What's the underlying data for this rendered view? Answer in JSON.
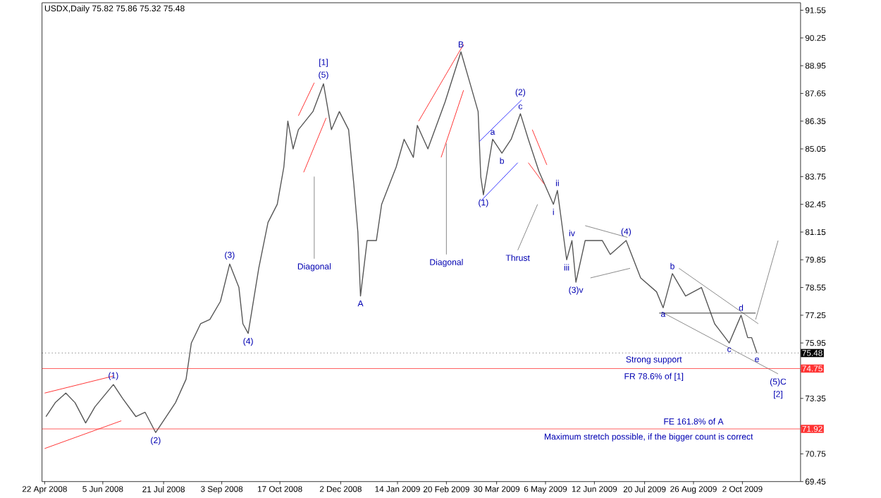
{
  "chart_data": {
    "type": "line",
    "title": "USDX,Daily 75.82 75.86 75.32 75.48",
    "x": [
      "2008-04-23",
      "2008-04-30",
      "2008-05-08",
      "2008-05-15",
      "2008-05-23",
      "2008-05-30",
      "2008-06-13",
      "2008-06-20",
      "2008-06-30",
      "2008-07-07",
      "2008-07-15",
      "2008-07-23",
      "2008-07-30",
      "2008-08-07",
      "2008-08-11",
      "2008-08-18",
      "2008-08-25",
      "2008-09-02",
      "2008-09-09",
      "2008-09-16",
      "2008-09-19",
      "2008-09-23",
      "2008-10-01",
      "2008-10-08",
      "2008-10-15",
      "2008-10-20",
      "2008-10-23",
      "2008-10-27",
      "2008-10-31",
      "2008-11-11",
      "2008-11-19",
      "2008-11-25",
      "2008-12-01",
      "2008-12-08",
      "2008-12-12",
      "2008-12-15",
      "2008-12-17",
      "2008-12-22",
      "2008-12-29",
      "2009-01-02",
      "2009-01-13",
      "2009-01-19",
      "2009-01-26",
      "2009-01-29",
      "2009-02-06",
      "2009-02-19",
      "2009-03-03",
      "2009-03-10",
      "2009-03-16",
      "2009-03-18",
      "2009-03-20",
      "2009-03-27",
      "2009-04-03",
      "2009-04-10",
      "2009-04-17",
      "2009-04-23",
      "2009-05-01",
      "2009-05-12",
      "2009-05-15",
      "2009-05-22",
      "2009-05-26",
      "2009-05-29",
      "2009-06-05",
      "2009-06-18",
      "2009-06-24",
      "2009-07-06",
      "2009-07-17",
      "2009-07-29",
      "2009-08-03",
      "2009-08-10",
      "2009-08-20",
      "2009-09-01",
      "2009-09-11",
      "2009-09-22",
      "2009-10-01",
      "2009-10-06",
      "2009-10-09",
      "2009-10-13"
    ],
    "series": [
      {
        "color": "#555555",
        "values": [
          72.5,
          73.15,
          73.6,
          73.15,
          72.2,
          72.95,
          74.0,
          73.35,
          72.5,
          72.7,
          71.75,
          72.5,
          73.15,
          74.25,
          75.95,
          76.85,
          77.05,
          77.9,
          79.65,
          78.55,
          76.85,
          76.4,
          79.45,
          81.6,
          82.45,
          84.2,
          86.35,
          85.05,
          85.95,
          86.8,
          88.1,
          85.95,
          86.8,
          85.95,
          83.35,
          81.15,
          78.15,
          80.75,
          80.75,
          82.45,
          84.2,
          85.5,
          84.65,
          86.15,
          85.05,
          87.25,
          89.6,
          88.1,
          86.8,
          83.75,
          82.9,
          85.5,
          84.85,
          85.5,
          86.7,
          85.5,
          84.0,
          82.45,
          83.1,
          79.85,
          80.75,
          78.8,
          80.75,
          80.75,
          80.1,
          80.75,
          79.0,
          78.35,
          77.6,
          79.2,
          78.15,
          78.55,
          76.85,
          75.95,
          77.25,
          76.2,
          76.2,
          75.48
        ]
      },
      {
        "type": "line",
        "color": "#ff3333",
        "x": [
          "2008-04-22",
          "2008-06-13"
        ],
        "values": [
          73.6,
          74.4
        ]
      },
      {
        "type": "line",
        "color": "#ff3333",
        "x": [
          "2008-04-22",
          "2008-06-19"
        ],
        "values": [
          71.0,
          72.3
        ]
      },
      {
        "type": "line",
        "color": "#ff3333",
        "x": [
          "2008-10-31",
          "2008-11-12"
        ],
        "values": [
          86.6,
          88.15
        ]
      },
      {
        "type": "line",
        "color": "#ff3333",
        "x": [
          "2008-11-04",
          "2008-11-21"
        ],
        "values": [
          83.95,
          86.5
        ]
      },
      {
        "type": "line",
        "color": "#ff3333",
        "x": [
          "2009-01-30",
          "2009-03-05"
        ],
        "values": [
          86.35,
          89.95
        ]
      },
      {
        "type": "line",
        "color": "#ff3333",
        "x": [
          "2009-02-16",
          "2009-03-05"
        ],
        "values": [
          84.65,
          87.8
        ]
      },
      {
        "type": "line",
        "color": "#3333ff",
        "x": [
          "2009-03-17",
          "2009-04-18"
        ],
        "values": [
          85.4,
          87.35
        ]
      },
      {
        "type": "line",
        "color": "#3333ff",
        "x": [
          "2009-03-18",
          "2009-04-15"
        ],
        "values": [
          82.6,
          84.4
        ]
      },
      {
        "type": "line",
        "color": "#ff3333",
        "x": [
          "2009-04-26",
          "2009-05-07"
        ],
        "values": [
          85.95,
          84.3
        ]
      },
      {
        "type": "line",
        "color": "#ff3333",
        "x": [
          "2009-04-23",
          "2009-05-05"
        ],
        "values": [
          84.4,
          83.4
        ]
      },
      {
        "type": "line",
        "color": "#888888",
        "x": [
          "2009-06-05",
          "2009-07-07"
        ],
        "values": [
          81.45,
          80.9
        ]
      },
      {
        "type": "line",
        "color": "#888888",
        "x": [
          "2009-06-09",
          "2009-07-09"
        ],
        "values": [
          79.0,
          79.45
        ]
      },
      {
        "type": "line",
        "color": "#888888",
        "x": [
          "2009-08-15",
          "2009-10-14"
        ],
        "values": [
          79.45,
          76.85
        ]
      },
      {
        "type": "line",
        "color": "#888888",
        "x": [
          "2009-08-02",
          "2009-10-29"
        ],
        "values": [
          77.4,
          74.5
        ]
      },
      {
        "type": "line",
        "color": "#888888",
        "x": [
          "2009-10-12",
          "2009-10-29"
        ],
        "values": [
          77.05,
          80.75
        ]
      },
      {
        "type": "line",
        "color": "#333333",
        "x": [
          "2009-07-31",
          "2009-10-12"
        ],
        "values": [
          77.35,
          77.35
        ]
      },
      {
        "type": "line",
        "color": "#888888",
        "x": [
          "2008-11-12",
          "2008-11-12"
        ],
        "values": [
          83.75,
          79.9
        ]
      },
      {
        "type": "line",
        "color": "#888888",
        "x": [
          "2009-02-20",
          "2009-02-20"
        ],
        "values": [
          85.3,
          80.1
        ]
      },
      {
        "type": "line",
        "color": "#888888",
        "x": [
          "2009-04-15",
          "2009-04-30"
        ],
        "values": [
          80.3,
          82.45
        ]
      }
    ],
    "xlim": [
      "2008-04-20",
      "2009-11-15"
    ],
    "ylim": [
      69.45,
      91.9
    ],
    "xticks": [
      {
        "value": "2008-04-22",
        "label": "22 Apr 2008"
      },
      {
        "value": "2008-06-05",
        "label": "5 Jun 2008"
      },
      {
        "value": "2008-07-21",
        "label": "21 Jul 2008"
      },
      {
        "value": "2008-09-03",
        "label": "3 Sep 2008"
      },
      {
        "value": "2008-10-17",
        "label": "17 Oct 2008"
      },
      {
        "value": "2008-12-02",
        "label": "2 Dec 2008"
      },
      {
        "value": "2009-01-14",
        "label": "14 Jan 2009"
      },
      {
        "value": "2009-02-20",
        "label": "20 Feb 2009"
      },
      {
        "value": "2009-03-30",
        "label": "30 Mar 2009"
      },
      {
        "value": "2009-05-06",
        "label": "6 May 2009"
      },
      {
        "value": "2009-06-12",
        "label": "12 Jun 2009"
      },
      {
        "value": "2009-07-20",
        "label": "20 Jul 2009"
      },
      {
        "value": "2009-08-26",
        "label": "26 Aug 2009"
      },
      {
        "value": "2009-10-02",
        "label": "2 Oct 2009"
      }
    ],
    "yticks": [
      69.45,
      70.75,
      {
        "value": 72.05,
        "label": null
      },
      73.35,
      {
        "value": 74.65,
        "label": null
      },
      75.95,
      77.25,
      78.55,
      79.85,
      81.15,
      82.45,
      83.75,
      85.05,
      86.35,
      87.65,
      88.95,
      90.25,
      91.55
    ],
    "ref_lines": [
      {
        "axis": "y",
        "value": 74.75,
        "label": "74.75",
        "color": "#ff3333"
      },
      {
        "axis": "y",
        "value": 71.92,
        "label": "71.92",
        "color": "#ff3333"
      },
      {
        "axis": "y",
        "value": 75.48,
        "label": "75.48",
        "color": "#000000",
        "line_style": "dotted"
      }
    ],
    "annotations": [
      {
        "text": "(5)",
        "x": "2008-11-19",
        "y": 88.1
      },
      {
        "text": "[1]",
        "x": "2008-11-19",
        "y": 88.1
      },
      {
        "text": "(1)",
        "x": "2008-06-13",
        "y": 74.0
      },
      {
        "text": "(2)",
        "x": "2008-07-15",
        "y": 71.75
      },
      {
        "text": "(3)",
        "x": "2008-09-09",
        "y": 79.65
      },
      {
        "text": "(4)",
        "x": "2008-09-23",
        "y": 76.4
      },
      {
        "text": "Diagonal",
        "x": "2008-11-12",
        "y": 79.9
      },
      {
        "text": "A",
        "x": "2008-12-17",
        "y": 78.15
      },
      {
        "text": "B",
        "x": "2009-03-03",
        "y": 89.6
      },
      {
        "text": "Diagonal",
        "x": "2009-02-20",
        "y": 80.1
      },
      {
        "text": "(1)",
        "x": "2009-03-20",
        "y": 82.9
      },
      {
        "text": "a",
        "x": "2009-03-27",
        "y": 85.5
      },
      {
        "text": "b",
        "x": "2009-04-03",
        "y": 84.85
      },
      {
        "text": "c",
        "x": "2009-04-17",
        "y": 86.7
      },
      {
        "text": "(2)",
        "x": "2009-04-17",
        "y": 86.7
      },
      {
        "text": "Thrust",
        "x": "2009-04-15",
        "y": 80.3
      },
      {
        "text": "i",
        "x": "2009-05-12",
        "y": 82.45
      },
      {
        "text": "ii",
        "x": "2009-05-15",
        "y": 83.1
      },
      {
        "text": "iii",
        "x": "2009-05-22",
        "y": 79.85
      },
      {
        "text": "iv",
        "x": "2009-05-26",
        "y": 80.75
      },
      {
        "text": "(3)v",
        "x": "2009-05-29",
        "y": 78.8
      },
      {
        "text": "(4)",
        "x": "2009-07-06",
        "y": 80.75
      },
      {
        "text": "a",
        "x": "2009-08-03",
        "y": 77.6
      },
      {
        "text": "b",
        "x": "2009-08-10",
        "y": 79.2
      },
      {
        "text": "c",
        "x": "2009-09-22",
        "y": 75.95
      },
      {
        "text": "d",
        "x": "2009-10-01",
        "y": 77.25
      },
      {
        "text": "e",
        "x": "2009-10-13",
        "y": 75.48
      },
      {
        "text": "(5)C",
        "x": "2009-10-29",
        "y": 74.5
      },
      {
        "text": "[2]",
        "x": "2009-10-29",
        "y": 74.5
      },
      {
        "text": "Strong support",
        "x": "2009-07-27",
        "y": 74.75
      },
      {
        "text": "FR 78.6% of [1]",
        "x": "2009-07-27",
        "y": 74.75
      },
      {
        "text": "FE 161.8% of A",
        "x": "2009-08-26",
        "y": 71.92
      },
      {
        "text": "Maximum stretch possible, if the bigger count is correct",
        "x": "2009-07-23",
        "y": 71.92
      }
    ]
  }
}
